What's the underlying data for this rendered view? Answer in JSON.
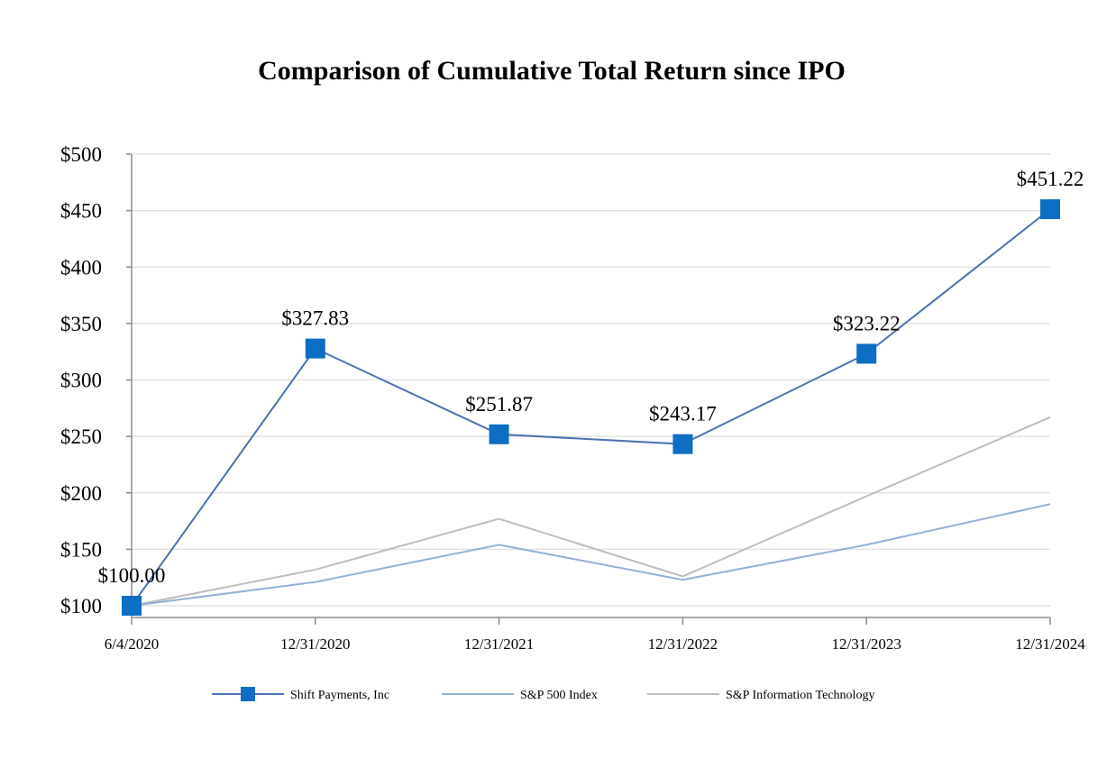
{
  "chart_data": {
    "type": "line",
    "title": "Comparison of Cumulative Total Return since IPO",
    "xlabel": "",
    "ylabel": "",
    "categories": [
      "6/4/2020",
      "12/31/2020",
      "12/31/2021",
      "12/31/2022",
      "12/31/2023",
      "12/31/2024"
    ],
    "ylim": [
      100,
      500
    ],
    "yticks": [
      100,
      150,
      200,
      250,
      300,
      350,
      400,
      450,
      500
    ],
    "ytick_labels": [
      "$100",
      "$150",
      "$200",
      "$250",
      "$300",
      "$350",
      "$400",
      "$450",
      "$500"
    ],
    "grid": true,
    "legend_position": "bottom",
    "series": [
      {
        "name": "Shift Payments, Inc",
        "values": [
          100.0,
          327.83,
          251.87,
          243.17,
          323.22,
          451.22
        ],
        "data_labels": [
          "$100.00",
          "$327.83",
          "$251.87",
          "$243.17",
          "$323.22",
          "$451.22"
        ],
        "color": "#4a72b0",
        "marker": "square",
        "marker_color": "#0e6ec4"
      },
      {
        "name": "S&P 500 Index",
        "values": [
          100,
          121,
          154,
          123,
          154,
          190
        ],
        "color": "#93b0d6",
        "marker": "none"
      },
      {
        "name": "S&P Information Technology",
        "values": [
          100,
          132,
          177,
          126,
          197,
          267
        ],
        "color": "#bdbdbd",
        "marker": "none"
      }
    ]
  }
}
